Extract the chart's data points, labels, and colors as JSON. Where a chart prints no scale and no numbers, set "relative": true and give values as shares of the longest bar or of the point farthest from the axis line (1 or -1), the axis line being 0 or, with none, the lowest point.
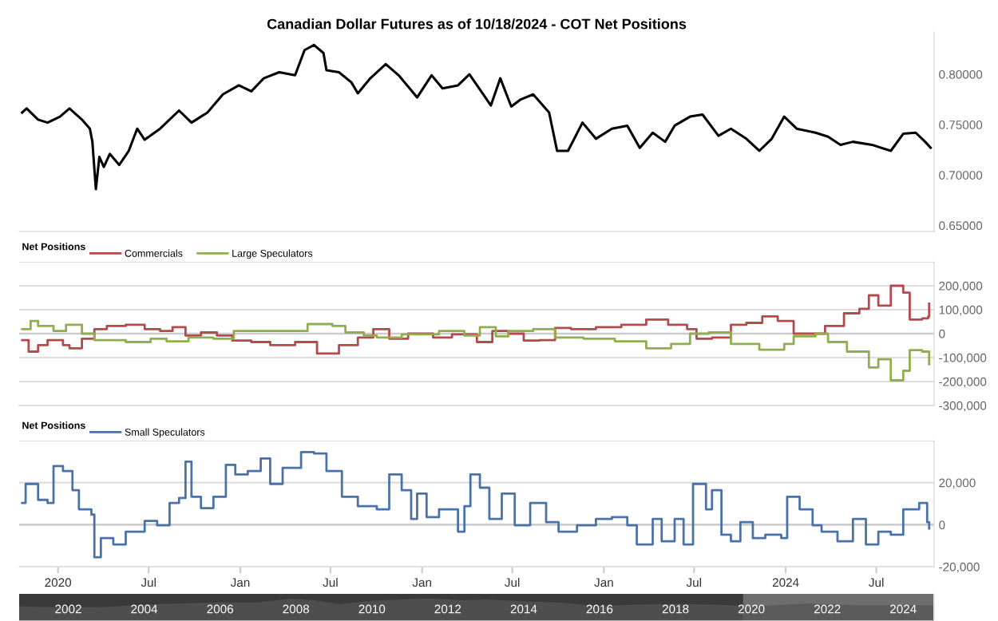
{
  "chart_data": [
    {
      "type": "line",
      "title": "Canadian Dollar Futures as of 10/18/2024 - COT Net Positions",
      "xlim": [
        "2019-10-15",
        "2024-10-25"
      ],
      "ylim": [
        0.644,
        0.842
      ],
      "yticks": [
        {
          "value": 0.65,
          "label": "0.65000"
        },
        {
          "value": 0.7,
          "label": "0.70000"
        },
        {
          "value": 0.75,
          "label": "0.75000"
        },
        {
          "value": 0.8,
          "label": "0.80000"
        }
      ],
      "tick_labels": "y",
      "grid": false,
      "series": [
        {
          "color": "#000000",
          "x": [
            "2019-10-21",
            "2019-10-30",
            "2019-11-22",
            "2019-12-11",
            "2020-01-05",
            "2020-01-24",
            "2020-02-18",
            "2020-03-05",
            "2020-03-10",
            "2020-03-17",
            "2020-03-24",
            "2020-04-02",
            "2020-04-14",
            "2020-05-03",
            "2020-05-22",
            "2020-06-08",
            "2020-06-23",
            "2020-07-24",
            "2020-08-31",
            "2020-09-25",
            "2020-10-27",
            "2020-11-27",
            "2020-12-29",
            "2021-01-23",
            "2021-02-17",
            "2021-03-20",
            "2021-04-21",
            "2021-05-10",
            "2021-05-29",
            "2021-06-17",
            "2021-06-23",
            "2021-07-18",
            "2021-08-12",
            "2021-08-25",
            "2021-09-19",
            "2021-10-20",
            "2021-11-15",
            "2021-12-22",
            "2022-01-20",
            "2022-02-11",
            "2022-03-14",
            "2022-04-06",
            "2022-05-04",
            "2022-05-19",
            "2022-06-07",
            "2022-06-29",
            "2022-07-18",
            "2022-08-12",
            "2022-09-13",
            "2022-09-29",
            "2022-10-21",
            "2022-11-19",
            "2022-12-16",
            "2023-01-17",
            "2023-02-17",
            "2023-03-14",
            "2023-04-09",
            "2023-05-04",
            "2023-05-23",
            "2023-06-23",
            "2023-07-18",
            "2023-08-19",
            "2023-09-13",
            "2023-10-14",
            "2023-11-09",
            "2023-12-04",
            "2023-12-29",
            "2024-01-23",
            "2024-03-01",
            "2024-03-26",
            "2024-04-20",
            "2024-05-15",
            "2024-06-22",
            "2024-07-30",
            "2024-08-24",
            "2024-09-18",
            "2024-10-07",
            "2024-10-18"
          ],
          "values": [
            0.762,
            0.766,
            0.755,
            0.752,
            0.758,
            0.766,
            0.755,
            0.746,
            0.733,
            0.686,
            0.718,
            0.708,
            0.721,
            0.71,
            0.724,
            0.746,
            0.735,
            0.746,
            0.764,
            0.752,
            0.762,
            0.78,
            0.789,
            0.783,
            0.796,
            0.802,
            0.799,
            0.824,
            0.829,
            0.821,
            0.804,
            0.802,
            0.792,
            0.781,
            0.796,
            0.81,
            0.799,
            0.777,
            0.799,
            0.786,
            0.789,
            0.8,
            0.78,
            0.769,
            0.796,
            0.768,
            0.775,
            0.78,
            0.762,
            0.724,
            0.724,
            0.752,
            0.736,
            0.746,
            0.749,
            0.727,
            0.742,
            0.733,
            0.749,
            0.758,
            0.76,
            0.739,
            0.746,
            0.736,
            0.724,
            0.736,
            0.758,
            0.746,
            0.742,
            0.738,
            0.73,
            0.733,
            0.73,
            0.724,
            0.741,
            0.742,
            0.733,
            0.727
          ]
        }
      ]
    },
    {
      "type": "step",
      "legend_title": "Net Positions",
      "legend": "top left",
      "xlim": [
        "2019-10-15",
        "2024-10-25"
      ],
      "ylim": [
        -300000,
        300000
      ],
      "yticks": [
        {
          "value": -300000,
          "label": "-300,000"
        },
        {
          "value": -200000,
          "label": "-200,000"
        },
        {
          "value": -100000,
          "label": "-100,000"
        },
        {
          "value": 0,
          "label": "0"
        },
        {
          "value": 100000,
          "label": "100,000"
        },
        {
          "value": 200000,
          "label": "200,000"
        },
        {
          "value": 300000,
          "label": null
        }
      ],
      "tick_labels": "y",
      "grid": "y",
      "ref_lines": [
        {
          "axis": "y",
          "value": 0,
          "color": "#cccccc"
        }
      ],
      "series": [
        {
          "name": "Commercials",
          "color": "#b5494b",
          "x": [
            "2019-10-21",
            "2019-11-03",
            "2019-11-22",
            "2019-12-11",
            "2020-01-11",
            "2020-01-24",
            "2020-02-18",
            "2020-03-14",
            "2020-04-08",
            "2020-05-16",
            "2020-06-23",
            "2020-07-24",
            "2020-08-18",
            "2020-09-13",
            "2020-10-14",
            "2020-11-15",
            "2020-12-16",
            "2021-01-23",
            "2021-03-02",
            "2021-04-21",
            "2021-06-04",
            "2021-07-18",
            "2021-08-25",
            "2021-09-25",
            "2021-10-27",
            "2021-12-04",
            "2022-01-23",
            "2022-03-02",
            "2022-04-21",
            "2022-05-22",
            "2022-06-23",
            "2022-07-24",
            "2022-08-25",
            "2022-09-25",
            "2022-10-27",
            "2022-12-16",
            "2023-02-05",
            "2023-03-27",
            "2023-05-10",
            "2023-06-17",
            "2023-07-06",
            "2023-08-06",
            "2023-09-13",
            "2023-10-14",
            "2023-11-15",
            "2023-12-16",
            "2024-01-17",
            "2024-02-24",
            "2024-03-20",
            "2024-04-27",
            "2024-05-28",
            "2024-06-16",
            "2024-07-05",
            "2024-07-30",
            "2024-08-24",
            "2024-09-06",
            "2024-10-01",
            "2024-10-13",
            "2024-10-15"
          ],
          "values": [
            -27000,
            -75000,
            -48000,
            -27000,
            -48000,
            -61000,
            -21000,
            19000,
            32000,
            37000,
            19000,
            11000,
            27000,
            -8000,
            5000,
            -8000,
            -29000,
            -35000,
            -48000,
            -35000,
            -83000,
            -48000,
            -16000,
            19000,
            -21000,
            0,
            -16000,
            -3000,
            -35000,
            11000,
            0,
            -29000,
            -27000,
            24000,
            19000,
            27000,
            37000,
            59000,
            37000,
            19000,
            -21000,
            -16000,
            37000,
            45000,
            72000,
            53000,
            0,
            0,
            32000,
            85000,
            104000,
            160000,
            117000,
            200000,
            171000,
            59000,
            64000,
            72000,
            125000
          ]
        },
        {
          "name": "Large Speculators",
          "color": "#8fae4e",
          "x": [
            "2019-10-21",
            "2019-11-07",
            "2019-11-22",
            "2019-12-23",
            "2020-01-17",
            "2020-02-18",
            "2020-03-14",
            "2020-05-16",
            "2020-07-05",
            "2020-08-06",
            "2020-09-19",
            "2020-11-08",
            "2020-12-19",
            "2021-02-17",
            "2021-04-08",
            "2021-05-16",
            "2021-07-05",
            "2021-07-31",
            "2021-09-06",
            "2021-10-02",
            "2021-11-21",
            "2022-02-04",
            "2022-03-27",
            "2022-04-27",
            "2022-05-29",
            "2022-06-23",
            "2022-08-12",
            "2022-09-25",
            "2022-11-21",
            "2023-01-23",
            "2023-03-27",
            "2023-05-16",
            "2023-06-23",
            "2023-07-31",
            "2023-09-13",
            "2023-11-09",
            "2023-12-29",
            "2024-01-17",
            "2024-03-01",
            "2024-03-26",
            "2024-05-03",
            "2024-06-16",
            "2024-07-05",
            "2024-07-30",
            "2024-08-24",
            "2024-09-06",
            "2024-10-01",
            "2024-10-15"
          ],
          "values": [
            19000,
            53000,
            32000,
            11000,
            37000,
            0,
            -27000,
            -35000,
            -21000,
            -32000,
            -16000,
            -21000,
            11000,
            11000,
            11000,
            40000,
            32000,
            5000,
            -8000,
            -16000,
            -3000,
            11000,
            -8000,
            27000,
            -11000,
            11000,
            19000,
            -16000,
            -21000,
            -32000,
            -61000,
            -43000,
            0,
            5000,
            -43000,
            -67000,
            -43000,
            -11000,
            0,
            -35000,
            -75000,
            -141000,
            -107000,
            -195000,
            -155000,
            -69000,
            -75000,
            -128000
          ]
        }
      ]
    },
    {
      "type": "step",
      "legend_title": "Net Positions",
      "legend": "top left",
      "xlim": [
        "2019-10-15",
        "2024-10-25"
      ],
      "ylim": [
        -20000,
        40000
      ],
      "yticks": [
        {
          "value": -20000,
          "label": "-20,000"
        },
        {
          "value": 0,
          "label": "0"
        },
        {
          "value": 20000,
          "label": "20,000"
        },
        {
          "value": 40000,
          "label": null
        }
      ],
      "xticks": [
        {
          "value": "2020-01-01",
          "label": "2020"
        },
        {
          "value": "2020-07-01",
          "label": "Jul"
        },
        {
          "value": "2021-01-01",
          "label": "Jan"
        },
        {
          "value": "2021-07-01",
          "label": "Jul"
        },
        {
          "value": "2022-01-01",
          "label": "Jan"
        },
        {
          "value": "2022-07-01",
          "label": "Jul"
        },
        {
          "value": "2023-01-01",
          "label": "Jan"
        },
        {
          "value": "2023-07-01",
          "label": "Jul"
        },
        {
          "value": "2024-01-01",
          "label": "2024"
        },
        {
          "value": "2024-07-01",
          "label": "Jul"
        }
      ],
      "grid": "y",
      "ref_lines": [
        {
          "axis": "y",
          "value": 0,
          "color": "#cccccc"
        }
      ],
      "series": [
        {
          "name": "Small Speculators",
          "color": "#4a72a8",
          "x": [
            "2019-10-21",
            "2019-10-28",
            "2019-11-09",
            "2019-11-22",
            "2019-12-11",
            "2019-12-23",
            "2020-01-11",
            "2020-01-30",
            "2020-02-12",
            "2020-03-08",
            "2020-03-14",
            "2020-03-27",
            "2020-04-21",
            "2020-05-16",
            "2020-06-23",
            "2020-07-18",
            "2020-08-12",
            "2020-08-31",
            "2020-09-13",
            "2020-09-25",
            "2020-10-14",
            "2020-11-08",
            "2020-12-03",
            "2020-12-22",
            "2021-01-16",
            "2021-02-11",
            "2021-03-02",
            "2021-03-27",
            "2021-05-03",
            "2021-05-29",
            "2021-06-23",
            "2021-07-24",
            "2021-08-25",
            "2021-10-02",
            "2021-10-27",
            "2021-11-21",
            "2021-12-10",
            "2021-12-22",
            "2022-01-10",
            "2022-02-04",
            "2022-03-14",
            "2022-03-27",
            "2022-04-08",
            "2022-04-27",
            "2022-05-16",
            "2022-06-10",
            "2022-07-06",
            "2022-08-06",
            "2022-09-07",
            "2022-10-02",
            "2022-11-08",
            "2022-12-16",
            "2023-01-17",
            "2023-02-17",
            "2023-03-08",
            "2023-04-09",
            "2023-04-27",
            "2023-05-23",
            "2023-06-10",
            "2023-06-29",
            "2023-07-25",
            "2023-08-06",
            "2023-08-25",
            "2023-09-13",
            "2023-10-02",
            "2023-10-27",
            "2023-11-21",
            "2023-12-23",
            "2024-01-04",
            "2024-01-29",
            "2024-02-24",
            "2024-03-13",
            "2024-04-14",
            "2024-05-15",
            "2024-06-10",
            "2024-07-05",
            "2024-07-30",
            "2024-08-24",
            "2024-09-25",
            "2024-10-11",
            "2024-10-15"
          ],
          "values": [
            10300,
            19400,
            19400,
            11800,
            10300,
            27900,
            25500,
            16400,
            7300,
            4800,
            -15500,
            -6400,
            -9400,
            -3300,
            1800,
            -300,
            10300,
            12700,
            30000,
            13300,
            7900,
            13300,
            28500,
            23900,
            25500,
            31500,
            19400,
            27000,
            34500,
            33900,
            25500,
            13300,
            8800,
            7300,
            23900,
            16400,
            2700,
            14800,
            3600,
            7300,
            -3300,
            8800,
            23900,
            17600,
            2700,
            14800,
            -300,
            10300,
            1200,
            -3300,
            -300,
            2700,
            3600,
            -300,
            -9400,
            2700,
            -7900,
            2700,
            -9400,
            19400,
            7300,
            16400,
            -4800,
            -7900,
            1200,
            -6400,
            -4800,
            -6400,
            13300,
            7300,
            -300,
            -3300,
            -7900,
            2700,
            -9400,
            -3300,
            -4800,
            7300,
            10300,
            1200,
            -1800
          ]
        }
      ]
    },
    {
      "type": "area",
      "relative": true,
      "xlim": [
        "2000-09-15",
        "2024-10-25"
      ],
      "tick_labels": "x",
      "xticks": [
        {
          "value": "2002-01-01",
          "label": "2002"
        },
        {
          "value": "2004-01-01",
          "label": "2004"
        },
        {
          "value": "2006-01-01",
          "label": "2006"
        },
        {
          "value": "2008-01-01",
          "label": "2008"
        },
        {
          "value": "2010-01-01",
          "label": "2010"
        },
        {
          "value": "2012-01-01",
          "label": "2012"
        },
        {
          "value": "2014-01-01",
          "label": "2014"
        },
        {
          "value": "2016-01-01",
          "label": "2016"
        },
        {
          "value": "2018-01-01",
          "label": "2018"
        },
        {
          "value": "2020-01-01",
          "label": "2020"
        },
        {
          "value": "2022-01-01",
          "label": "2022"
        },
        {
          "value": "2024-01-01",
          "label": "2024"
        }
      ],
      "bands": [
        {
          "axis": "x",
          "from": "2000-09-15",
          "to": "2019-10-15",
          "color": "#3a3a3a"
        },
        {
          "axis": "x",
          "from": "2019-10-15",
          "to": "2024-10-18",
          "color": "#6e6e6e"
        }
      ],
      "series": [
        {
          "color": "#555555",
          "x": [
            "2000-09-15",
            "2001-06-01",
            "2002-01-01",
            "2003-01-01",
            "2004-01-01",
            "2005-01-01",
            "2006-01-01",
            "2007-01-01",
            "2007-11-01",
            "2008-06-01",
            "2009-03-01",
            "2010-01-01",
            "2011-07-01",
            "2012-06-01",
            "2013-01-01",
            "2014-01-01",
            "2015-01-01",
            "2016-01-01",
            "2017-01-01",
            "2018-01-01",
            "2019-01-01",
            "2020-03-15",
            "2021-06-01",
            "2022-10-01",
            "2024-10-18"
          ],
          "values": [
            0.64,
            0.62,
            0.6,
            0.62,
            0.73,
            0.78,
            0.82,
            0.82,
            0.98,
            0.93,
            0.74,
            0.9,
            1.0,
            0.92,
            0.95,
            0.87,
            0.8,
            0.67,
            0.72,
            0.76,
            0.72,
            0.65,
            0.78,
            0.7,
            0.7
          ]
        }
      ]
    }
  ]
}
